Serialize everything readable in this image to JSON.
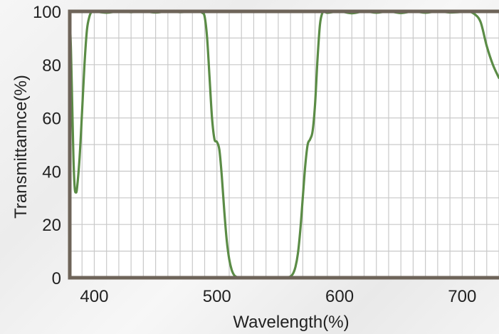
{
  "chart_data": {
    "type": "line",
    "title": "",
    "xlabel": "Wavelength(%)",
    "ylabel": "Transmittannce(%)",
    "xlim": [
      380,
      730
    ],
    "ylim": [
      0,
      100
    ],
    "x_ticks": [
      400,
      500,
      600,
      700
    ],
    "y_ticks": [
      0,
      20,
      40,
      60,
      80,
      100
    ],
    "x_tick_labels": [
      "400",
      "500",
      "600",
      "700"
    ],
    "y_tick_labels": [
      "0",
      "20",
      "40",
      "60",
      "80",
      "100"
    ],
    "grid": true,
    "legend": "none",
    "colors": {
      "line": "#5b8c46",
      "frame": "#6e6459",
      "grid": "#c9c9c9"
    },
    "series": [
      {
        "x": [
          380,
          381,
          382,
          383,
          384,
          385,
          386,
          388,
          390,
          392,
          394,
          396,
          398,
          400,
          410,
          420,
          430,
          440,
          450,
          460,
          470,
          480,
          485,
          488,
          490,
          492,
          494,
          496,
          498,
          500,
          502,
          504,
          506,
          508,
          510,
          512,
          514,
          516,
          518,
          520,
          525,
          530,
          535,
          540,
          545,
          550,
          555,
          558,
          560,
          562,
          564,
          566,
          568,
          570,
          572,
          574,
          576,
          578,
          580,
          582,
          584,
          586,
          588,
          590,
          600,
          610,
          620,
          630,
          640,
          650,
          660,
          670,
          680,
          690,
          700,
          705,
          710,
          715,
          720,
          725,
          730
        ],
        "y": [
          99,
          85,
          65,
          45,
          34,
          32,
          34,
          45,
          62,
          80,
          93,
          98,
          100,
          100,
          99.5,
          100,
          99.7,
          100,
          99.6,
          100,
          99.7,
          100,
          100,
          99.5,
          98,
          90,
          75,
          60,
          52,
          51,
          48,
          38,
          25,
          14,
          7,
          3,
          1,
          0.3,
          0,
          0,
          0,
          0,
          0,
          0,
          0,
          0,
          0,
          0.2,
          0.5,
          1.5,
          4,
          9,
          18,
          30,
          42,
          50,
          52,
          55,
          65,
          82,
          95,
          99.5,
          100,
          99.5,
          100,
          99.3,
          100,
          99.5,
          100,
          99.4,
          100,
          99.5,
          100,
          99.6,
          99.8,
          100,
          99,
          96,
          87,
          80,
          75
        ]
      }
    ]
  }
}
